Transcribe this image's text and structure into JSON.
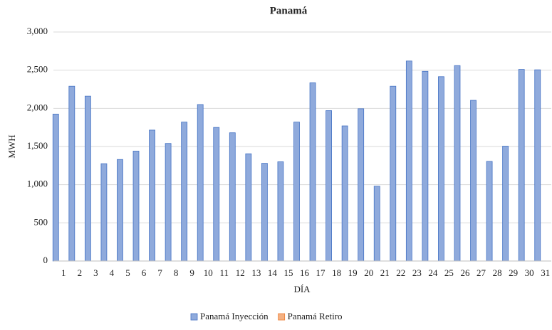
{
  "chart_data": {
    "type": "bar",
    "title": "Panamá",
    "x_label": "DÍA",
    "y_label": "MWH",
    "categories": [
      "1",
      "2",
      "3",
      "4",
      "5",
      "6",
      "7",
      "8",
      "9",
      "10",
      "11",
      "12",
      "13",
      "14",
      "15",
      "16",
      "17",
      "18",
      "19",
      "20",
      "21",
      "22",
      "23",
      "24",
      "25",
      "26",
      "27",
      "28",
      "29",
      "30",
      "31"
    ],
    "series": [
      {
        "name": "Panamá Inyección",
        "color": "#8faadc",
        "values": [
          1925,
          2290,
          2160,
          1275,
          1330,
          1440,
          1715,
          1540,
          1820,
          2050,
          1750,
          1680,
          1405,
          1280,
          1300,
          1820,
          2335,
          1970,
          1770,
          1995,
          980,
          2290,
          2620,
          2485,
          2415,
          2560,
          2105,
          1305,
          1505,
          2510,
          2505
        ]
      },
      {
        "name": "Panamá Retiro",
        "color": "#f4b183",
        "values": [
          0,
          0,
          0,
          0,
          0,
          0,
          0,
          0,
          0,
          0,
          0,
          0,
          0,
          0,
          0,
          0,
          0,
          0,
          0,
          0,
          0,
          0,
          0,
          0,
          0,
          0,
          0,
          0,
          0,
          0,
          0
        ]
      }
    ],
    "ylim": [
      0,
      3000
    ],
    "yticks": [
      0,
      500,
      {
        "value": 1000,
        "label": "1,000"
      },
      {
        "value": 1500,
        "label": "1,500"
      },
      {
        "value": 2000,
        "label": "2,000"
      },
      {
        "value": 2500,
        "label": "2,500"
      },
      {
        "value": 3000,
        "label": "3,000"
      }
    ],
    "grid": true,
    "legend": "bottom"
  }
}
